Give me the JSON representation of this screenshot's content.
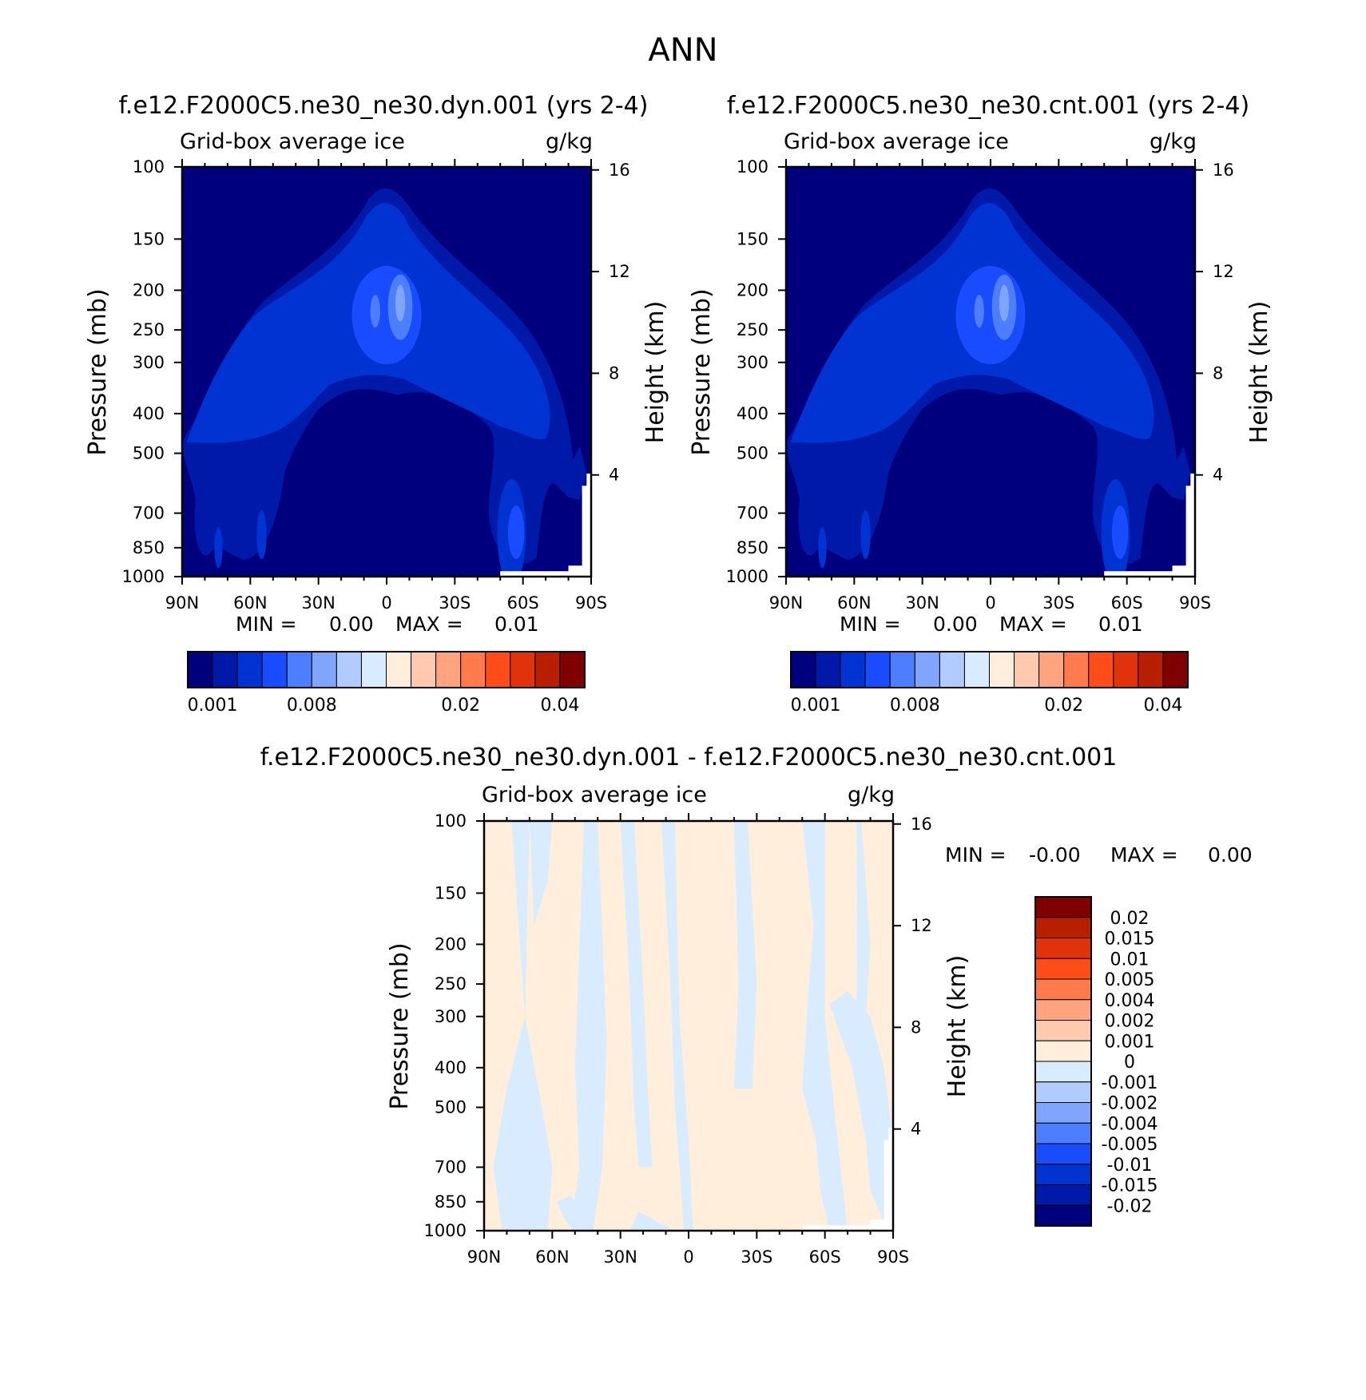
{
  "figure": {
    "title": "ANN"
  },
  "colors": {
    "abs_scale": [
      "#00007f",
      "#0019a8",
      "#0033d1",
      "#1a4cff",
      "#4d7eff",
      "#80a5ff",
      "#b2cbff",
      "#d9ecff",
      "#ffeedb",
      "#ffc9b0",
      "#ffa47f",
      "#ff7a4d",
      "#ff4d1a",
      "#e0330c",
      "#b81f00",
      "#7f0000"
    ],
    "diff_scale": [
      "#00007f",
      "#0019a8",
      "#0033d1",
      "#1a4cff",
      "#4d7eff",
      "#80a5ff",
      "#b2cbff",
      "#d9ecff",
      "#ffeedb",
      "#ffc9b0",
      "#ffa47f",
      "#ff7a4d",
      "#ff4d1a",
      "#e0330c",
      "#b81f00",
      "#7f0000"
    ],
    "missing": "#ffffff"
  },
  "chart_data": [
    {
      "type": "heatmap",
      "title": "f.e12.F2000C5.ne30_ne30.dyn.001 (yrs 2-4)",
      "left_label": "Grid-box average ice",
      "right_label": "g/kg",
      "ylabel": "Pressure (mb)",
      "y2label": "Height (km)",
      "xlim": [
        90,
        -90
      ],
      "ylim": [
        100,
        1000
      ],
      "yscale": "log",
      "x_ticks": [
        {
          "v": 90,
          "t": "90N"
        },
        {
          "v": 60,
          "t": "60N"
        },
        {
          "v": 30,
          "t": "30N"
        },
        {
          "v": 0,
          "t": "0"
        },
        {
          "v": -30,
          "t": "30S"
        },
        {
          "v": -60,
          "t": "60S"
        },
        {
          "v": -90,
          "t": "90S"
        }
      ],
      "y_ticks": [
        {
          "v": 100,
          "t": "100"
        },
        {
          "v": 150,
          "t": "150"
        },
        {
          "v": 200,
          "t": "200"
        },
        {
          "v": 250,
          "t": "250"
        },
        {
          "v": 300,
          "t": "300"
        },
        {
          "v": 400,
          "t": "400"
        },
        {
          "v": 500,
          "t": "500"
        },
        {
          "v": 700,
          "t": "700"
        },
        {
          "v": 850,
          "t": "850"
        },
        {
          "v": 1000,
          "t": "1000"
        }
      ],
      "y2_ticks": [
        {
          "v": 16,
          "t": "16"
        },
        {
          "v": 12,
          "t": "12"
        },
        {
          "v": 8,
          "t": "8"
        },
        {
          "v": 4,
          "t": "4"
        }
      ],
      "min_label": "MIN =",
      "min_value": "0.00",
      "max_label": "MAX =",
      "max_value": "0.01",
      "colorbar_labels": [
        {
          "i": 0,
          "t": "0.001"
        },
        {
          "i": 2,
          "t": "0.008"
        },
        {
          "i": 5,
          "t": "0.02"
        },
        {
          "i": 7,
          "t": "0.04"
        }
      ]
    },
    {
      "type": "heatmap",
      "title": "f.e12.F2000C5.ne30_ne30.cnt.001 (yrs 2-4)",
      "left_label": "Grid-box average ice",
      "right_label": "g/kg",
      "ylabel": "Pressure (mb)",
      "y2label": "Height (km)",
      "xlim": [
        90,
        -90
      ],
      "ylim": [
        100,
        1000
      ],
      "yscale": "log",
      "x_ticks": [
        {
          "v": 90,
          "t": "90N"
        },
        {
          "v": 60,
          "t": "60N"
        },
        {
          "v": 30,
          "t": "30N"
        },
        {
          "v": 0,
          "t": "0"
        },
        {
          "v": -30,
          "t": "30S"
        },
        {
          "v": -60,
          "t": "60S"
        },
        {
          "v": -90,
          "t": "90S"
        }
      ],
      "y_ticks": [
        {
          "v": 100,
          "t": "100"
        },
        {
          "v": 150,
          "t": "150"
        },
        {
          "v": 200,
          "t": "200"
        },
        {
          "v": 250,
          "t": "250"
        },
        {
          "v": 300,
          "t": "300"
        },
        {
          "v": 400,
          "t": "400"
        },
        {
          "v": 500,
          "t": "500"
        },
        {
          "v": 700,
          "t": "700"
        },
        {
          "v": 850,
          "t": "850"
        },
        {
          "v": 1000,
          "t": "1000"
        }
      ],
      "y2_ticks": [
        {
          "v": 16,
          "t": "16"
        },
        {
          "v": 12,
          "t": "12"
        },
        {
          "v": 8,
          "t": "8"
        },
        {
          "v": 4,
          "t": "4"
        }
      ],
      "min_label": "MIN =",
      "min_value": "0.00",
      "max_label": "MAX =",
      "max_value": "0.01",
      "colorbar_labels": [
        {
          "i": 0,
          "t": "0.001"
        },
        {
          "i": 2,
          "t": "0.008"
        },
        {
          "i": 5,
          "t": "0.02"
        },
        {
          "i": 7,
          "t": "0.04"
        }
      ]
    },
    {
      "type": "heatmap",
      "title": "f.e12.F2000C5.ne30_ne30.dyn.001 - f.e12.F2000C5.ne30_ne30.cnt.001",
      "left_label": "Grid-box average ice",
      "right_label": "g/kg",
      "ylabel": "Pressure (mb)",
      "y2label": "Height (km)",
      "xlim": [
        90,
        -90
      ],
      "ylim": [
        100,
        1000
      ],
      "yscale": "log",
      "x_ticks": [
        {
          "v": 90,
          "t": "90N"
        },
        {
          "v": 60,
          "t": "60N"
        },
        {
          "v": 30,
          "t": "30N"
        },
        {
          "v": 0,
          "t": "0"
        },
        {
          "v": -30,
          "t": "30S"
        },
        {
          "v": -60,
          "t": "60S"
        },
        {
          "v": -90,
          "t": "90S"
        }
      ],
      "y_ticks": [
        {
          "v": 100,
          "t": "100"
        },
        {
          "v": 150,
          "t": "150"
        },
        {
          "v": 200,
          "t": "200"
        },
        {
          "v": 250,
          "t": "250"
        },
        {
          "v": 300,
          "t": "300"
        },
        {
          "v": 400,
          "t": "400"
        },
        {
          "v": 500,
          "t": "500"
        },
        {
          "v": 700,
          "t": "700"
        },
        {
          "v": 850,
          "t": "850"
        },
        {
          "v": 1000,
          "t": "1000"
        }
      ],
      "y2_ticks": [
        {
          "v": 16,
          "t": "16"
        },
        {
          "v": 12,
          "t": "12"
        },
        {
          "v": 8,
          "t": "8"
        },
        {
          "v": 4,
          "t": "4"
        }
      ],
      "min_label": "MIN =",
      "min_value": "-0.00",
      "max_label": "MAX =",
      "max_value": "0.00",
      "colorbar_labels": [
        "0.02",
        "0.015",
        "0.01",
        "0.005",
        "0.004",
        "0.002",
        "0.001",
        "0",
        "-0.001",
        "-0.002",
        "-0.004",
        "-0.005",
        "-0.01",
        "-0.015",
        "-0.02"
      ]
    }
  ]
}
